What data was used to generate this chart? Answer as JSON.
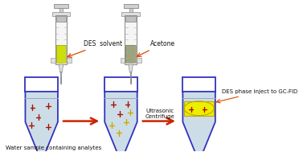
{
  "bg_color": "#ffffff",
  "tube_edge_color": "#3333bb",
  "tube_fill_light": "#ccdde8",
  "des_solvent_color": "#ccdd00",
  "acetone_color": "#9a9e78",
  "des_phase_color": "#eeee00",
  "arrow_color": "#cc2200",
  "annot_arrow_color": "#dd4400",
  "plus_red": "#aa1100",
  "plus_yellow": "#ccaa00",
  "text_color": "#111111",
  "syringe_gray": "#d0d0d0",
  "syringe_dark": "#888888",
  "label_bottom": "Water sample containing analytes",
  "label_des": "DES  solvent",
  "label_acetone": "Acetone",
  "label_ultrasonic": "Ultrasonic\nCentrifuge",
  "label_des_phase": "DES phase inject to GC-FID"
}
